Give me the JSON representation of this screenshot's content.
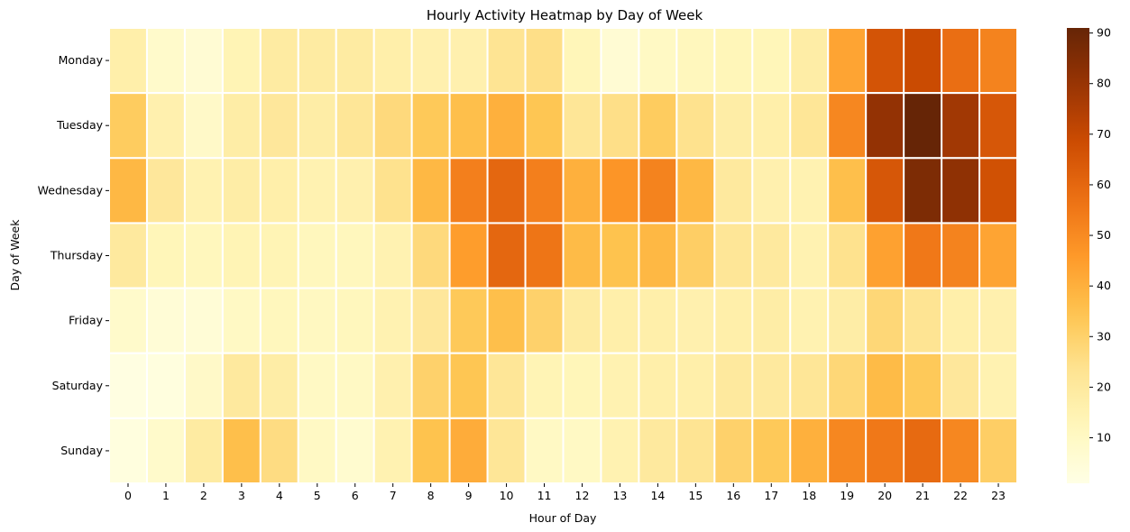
{
  "chart_data": {
    "type": "heatmap",
    "title": "Hourly Activity Heatmap by Day of Week",
    "xlabel": "Hour of Day",
    "ylabel": "Day of Week",
    "x_categories": [
      "0",
      "1",
      "2",
      "3",
      "4",
      "5",
      "6",
      "7",
      "8",
      "9",
      "10",
      "11",
      "12",
      "13",
      "14",
      "15",
      "16",
      "17",
      "18",
      "19",
      "20",
      "21",
      "22",
      "23"
    ],
    "y_categories": [
      "Monday",
      "Tuesday",
      "Wednesday",
      "Thursday",
      "Friday",
      "Saturday",
      "Sunday"
    ],
    "values": [
      [
        17,
        8,
        6,
        14,
        19,
        19,
        19,
        17,
        16,
        16,
        23,
        25,
        13,
        6,
        10,
        12,
        13,
        13,
        18,
        43,
        66,
        69,
        58,
        52
      ],
      [
        32,
        16,
        9,
        18,
        21,
        18,
        22,
        27,
        33,
        36,
        40,
        34,
        22,
        25,
        32,
        24,
        18,
        17,
        22,
        51,
        81,
        91,
        78,
        65
      ],
      [
        38,
        21,
        15,
        18,
        17,
        15,
        16,
        24,
        38,
        53,
        60,
        53,
        40,
        47,
        52,
        38,
        20,
        16,
        15,
        36,
        65,
        86,
        82,
        67
      ],
      [
        20,
        13,
        12,
        14,
        14,
        12,
        12,
        15,
        27,
        45,
        60,
        56,
        37,
        35,
        38,
        31,
        22,
        20,
        15,
        24,
        44,
        55,
        52,
        43
      ],
      [
        8,
        5,
        5,
        10,
        12,
        11,
        12,
        15,
        21,
        33,
        36,
        30,
        19,
        17,
        17,
        16,
        17,
        18,
        15,
        18,
        28,
        23,
        17,
        16
      ],
      [
        2,
        3,
        9,
        20,
        18,
        10,
        10,
        16,
        30,
        34,
        22,
        14,
        13,
        15,
        17,
        17,
        20,
        20,
        22,
        28,
        37,
        33,
        21,
        15
      ],
      [
        3,
        8,
        19,
        36,
        26,
        10,
        7,
        15,
        35,
        41,
        22,
        10,
        10,
        15,
        20,
        23,
        30,
        33,
        40,
        51,
        55,
        59,
        51,
        31
      ]
    ],
    "vmin": 1,
    "vmax": 91,
    "colormap": "YlOrBr",
    "colorbar_ticks": [
      10,
      20,
      30,
      40,
      50,
      60,
      70,
      80,
      90
    ],
    "cell_border_color": "#ffffff"
  }
}
